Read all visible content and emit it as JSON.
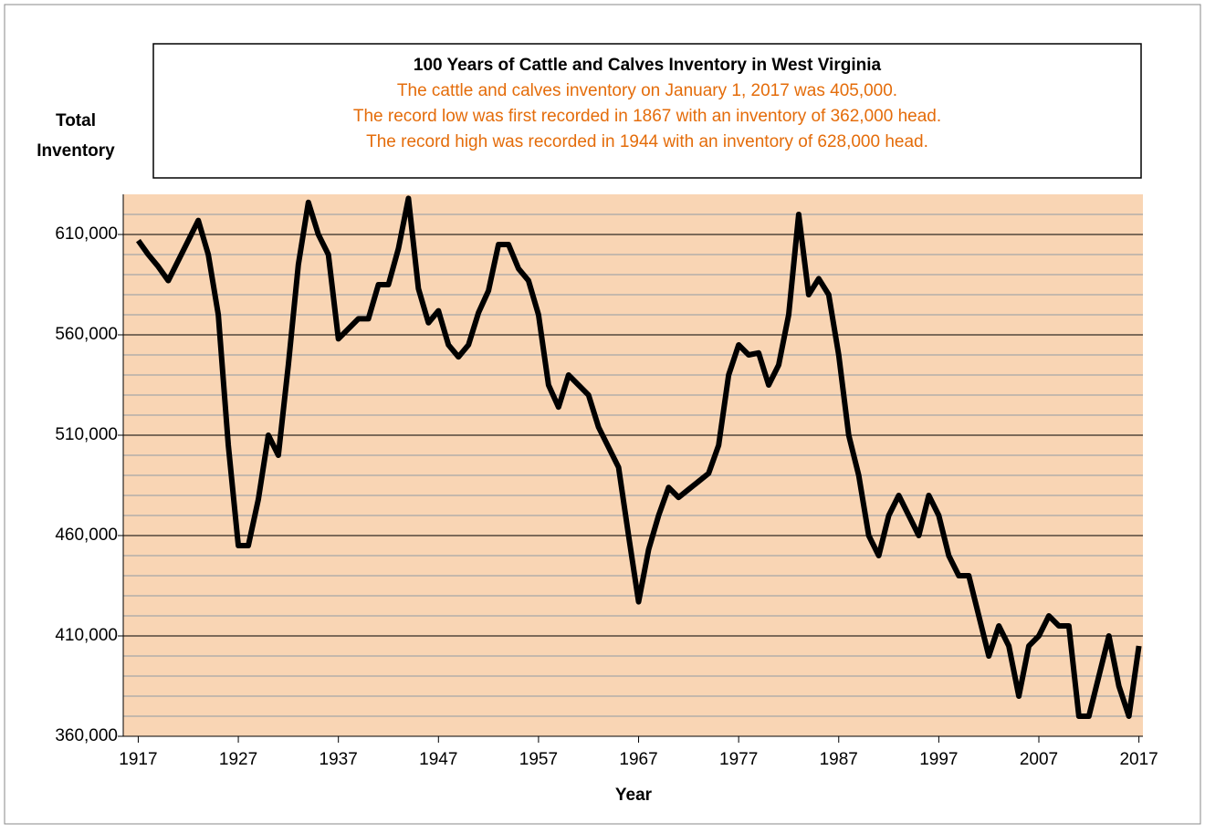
{
  "chart_data": {
    "type": "line",
    "title": "100 Years of Cattle and Calves Inventory in West Virginia",
    "subtitle": [
      "The cattle and calves inventory on January 1, 2017 was 405,000.",
      "The record low was first recorded in 1867 with an inventory of 362,000 head.",
      "The record high was recorded in 1944 with an inventory of 628,000 head."
    ],
    "ylabel": [
      "Total",
      "Inventory"
    ],
    "xlabel": "Year",
    "x": [
      1917,
      1918,
      1919,
      1920,
      1921,
      1922,
      1923,
      1924,
      1925,
      1926,
      1927,
      1928,
      1929,
      1930,
      1931,
      1932,
      1933,
      1934,
      1935,
      1936,
      1937,
      1938,
      1939,
      1940,
      1941,
      1942,
      1943,
      1944,
      1945,
      1946,
      1947,
      1948,
      1949,
      1950,
      1951,
      1952,
      1953,
      1954,
      1955,
      1956,
      1957,
      1958,
      1959,
      1960,
      1961,
      1962,
      1963,
      1964,
      1965,
      1966,
      1967,
      1968,
      1969,
      1970,
      1971,
      1972,
      1973,
      1974,
      1975,
      1976,
      1977,
      1978,
      1979,
      1980,
      1981,
      1982,
      1983,
      1984,
      1985,
      1986,
      1987,
      1988,
      1989,
      1990,
      1991,
      1992,
      1993,
      1994,
      1995,
      1996,
      1997,
      1998,
      1999,
      2000,
      2001,
      2002,
      2003,
      2004,
      2005,
      2006,
      2007,
      2008,
      2009,
      2010,
      2011,
      2012,
      2013,
      2014,
      2015,
      2016,
      2017
    ],
    "series": [
      {
        "name": "Total Inventory",
        "color": "#000000",
        "values": [
          607000,
          600000,
          594000,
          587000,
          597000,
          607000,
          617000,
          600000,
          570000,
          505000,
          455000,
          455000,
          478000,
          510000,
          500000,
          545000,
          595000,
          626000,
          610000,
          600000,
          558000,
          563000,
          568000,
          568000,
          585000,
          585000,
          603000,
          628000,
          583000,
          566000,
          572000,
          555000,
          549000,
          555000,
          571000,
          582000,
          605000,
          605000,
          593000,
          587000,
          570000,
          535000,
          524000,
          540000,
          535000,
          530000,
          514000,
          504000,
          494000,
          460000,
          427000,
          453000,
          470000,
          484000,
          479000,
          483000,
          487000,
          491000,
          505000,
          540000,
          555000,
          550000,
          551000,
          535000,
          545000,
          570000,
          620000,
          580000,
          588000,
          580000,
          550000,
          510000,
          490000,
          460000,
          450000,
          470000,
          480000,
          470000,
          460000,
          480000,
          470000,
          450000,
          440000,
          440000,
          420000,
          400000,
          415000,
          405000,
          380000,
          405000,
          410000,
          420000,
          415000,
          415000,
          370000,
          370000,
          390000,
          410000,
          385000,
          370000,
          405000
        ]
      }
    ],
    "xlim": [
      1915.5,
      2017.4
    ],
    "xticks": [
      1917,
      1927,
      1937,
      1947,
      1957,
      1967,
      1977,
      1987,
      1997,
      2007,
      2017
    ],
    "ylim": [
      360000,
      630000
    ],
    "yticks": [
      {
        "value": 360000,
        "label": "360,000"
      },
      {
        "value": 410000,
        "label": "410,000"
      },
      {
        "value": 460000,
        "label": "460,000"
      },
      {
        "value": 510000,
        "label": "510,000"
      },
      {
        "value": 560000,
        "label": "560,000"
      },
      {
        "value": 610000,
        "label": "610,000"
      }
    ],
    "minor_yticks": [
      370000,
      380000,
      390000,
      400000,
      420000,
      430000,
      440000,
      450000,
      470000,
      480000,
      490000,
      500000,
      520000,
      530000,
      540000,
      550000,
      570000,
      580000,
      590000,
      600000,
      620000
    ],
    "plot_color": "#f9d5b4",
    "subtitle_color": "#e46c0a",
    "grid": true
  }
}
